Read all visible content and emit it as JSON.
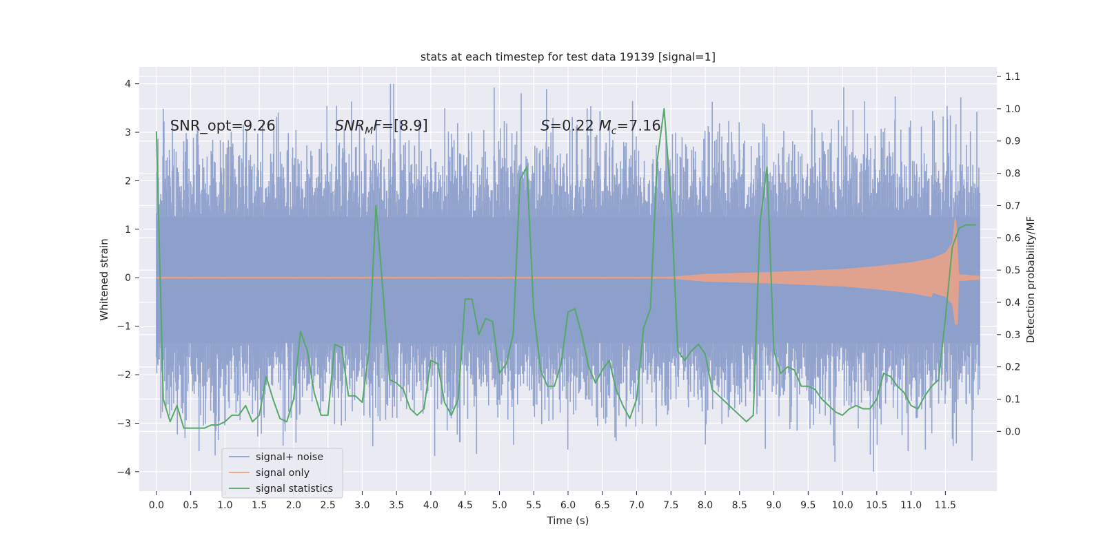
{
  "chart_data": {
    "type": "line",
    "title": "stats at each timestep for test data 19139 [signal=1]",
    "xlabel": "Time (s)",
    "ylabel": "Whitened strain",
    "y2label": "Detection probability/MF",
    "xlim": [
      -0.25,
      12.25
    ],
    "ylim": [
      -4.4,
      4.35
    ],
    "y2lim": [
      -0.185,
      1.13
    ],
    "grid": true,
    "legend_position": "lower-left",
    "x_ticks": [
      0.0,
      0.5,
      1.0,
      1.5,
      2.0,
      2.5,
      3.0,
      3.5,
      4.0,
      4.5,
      5.0,
      5.5,
      6.0,
      6.5,
      7.0,
      7.5,
      8.0,
      8.5,
      9.0,
      9.5,
      10.0,
      10.5,
      11.0,
      11.5
    ],
    "x_tick_labels": [
      "0.0",
      "0.5",
      "1.0",
      "1.5",
      "2.0",
      "2.5",
      "3.0",
      "3.5",
      "4.0",
      "4.5",
      "5.0",
      "5.5",
      "6.0",
      "6.5",
      "7.0",
      "7.5",
      "8.0",
      "8.5",
      "9.0",
      "9.5",
      "10.0",
      "10.5",
      "11.0",
      "11.5"
    ],
    "y_ticks": [
      -4,
      -3,
      -2,
      -1,
      0,
      1,
      2,
      3,
      4
    ],
    "y_tick_labels": [
      "−4",
      "−3",
      "−2",
      "−1",
      "0",
      "1",
      "2",
      "3",
      "4"
    ],
    "y2_ticks": [
      0.0,
      0.1,
      0.2,
      0.3,
      0.4,
      0.5,
      0.6,
      0.7,
      0.8,
      0.9,
      1.0,
      1.1
    ],
    "y2_tick_labels": [
      "0.0",
      "0.1",
      "0.2",
      "0.3",
      "0.4",
      "0.5",
      "0.6",
      "0.7",
      "0.8",
      "0.9",
      "1.0",
      "1.1"
    ],
    "annotations": [
      {
        "text": "SNR_opt=9.26",
        "x": 0.2,
        "y": 3.15
      },
      {
        "text": "SNR_MF=[8.9]",
        "x": 2.6,
        "y": 3.15
      },
      {
        "text": "S=0.22   M_c=7.16",
        "x": 5.6,
        "y": 3.15
      }
    ],
    "series": [
      {
        "name": "signal+ noise",
        "axis": "left",
        "color": "#8da0cb",
        "kind": "noise",
        "x_range": [
          0.0,
          12.0
        ],
        "samples": 2048,
        "amplitude_typical": 1.0,
        "amplitude_max": 4.0
      },
      {
        "name": "signal only",
        "axis": "left",
        "color": "#e9a287",
        "kind": "chirp",
        "x_range": [
          0.0,
          12.0
        ],
        "merger_time": 11.65,
        "peak_upper": 1.4,
        "peak_lower": -0.95,
        "envelope": [
          [
            7.5,
            0.0
          ],
          [
            8.0,
            0.06
          ],
          [
            9.0,
            0.1
          ],
          [
            10.0,
            0.16
          ],
          [
            10.5,
            0.22
          ],
          [
            11.0,
            0.3
          ],
          [
            11.3,
            0.38
          ],
          [
            11.5,
            0.5
          ],
          [
            11.6,
            0.7
          ],
          [
            11.65,
            1.4
          ],
          [
            11.7,
            0.05
          ],
          [
            12.0,
            0.02
          ]
        ]
      },
      {
        "name": "signal statistics",
        "axis": "right",
        "color": "#55a868",
        "kind": "line",
        "x": [
          0.0,
          0.1,
          0.2,
          0.3,
          0.4,
          0.5,
          0.6,
          0.7,
          0.8,
          0.9,
          1.0,
          1.1,
          1.2,
          1.3,
          1.4,
          1.5,
          1.6,
          1.7,
          1.8,
          1.9,
          2.0,
          2.1,
          2.2,
          2.3,
          2.4,
          2.5,
          2.6,
          2.7,
          2.8,
          2.9,
          3.0,
          3.1,
          3.2,
          3.3,
          3.4,
          3.5,
          3.6,
          3.7,
          3.8,
          3.9,
          4.0,
          4.1,
          4.2,
          4.3,
          4.4,
          4.5,
          4.6,
          4.7,
          4.8,
          4.9,
          5.0,
          5.1,
          5.2,
          5.3,
          5.4,
          5.5,
          5.6,
          5.7,
          5.8,
          5.9,
          6.0,
          6.1,
          6.2,
          6.3,
          6.4,
          6.5,
          6.6,
          6.7,
          6.8,
          6.9,
          7.0,
          7.1,
          7.2,
          7.3,
          7.4,
          7.5,
          7.6,
          7.7,
          7.8,
          7.9,
          8.0,
          8.1,
          8.2,
          8.3,
          8.4,
          8.5,
          8.6,
          8.7,
          8.8,
          8.9,
          9.0,
          9.1,
          9.2,
          9.3,
          9.4,
          9.5,
          9.6,
          9.7,
          9.8,
          9.9,
          10.0,
          10.1,
          10.2,
          10.3,
          10.4,
          10.5,
          10.6,
          10.7,
          10.8,
          10.9,
          11.0,
          11.1,
          11.2,
          11.3,
          11.4,
          11.5,
          11.6,
          11.7,
          11.8,
          11.9,
          11.95
        ],
        "values": [
          0.93,
          0.1,
          0.03,
          0.08,
          0.01,
          0.01,
          0.01,
          0.01,
          0.02,
          0.02,
          0.03,
          0.05,
          0.05,
          0.08,
          0.03,
          0.05,
          0.17,
          0.1,
          0.04,
          0.03,
          0.1,
          0.31,
          0.25,
          0.12,
          0.05,
          0.05,
          0.27,
          0.26,
          0.11,
          0.11,
          0.09,
          0.25,
          0.7,
          0.44,
          0.16,
          0.15,
          0.13,
          0.07,
          0.05,
          0.07,
          0.22,
          0.21,
          0.09,
          0.05,
          0.1,
          0.41,
          0.41,
          0.3,
          0.35,
          0.34,
          0.18,
          0.21,
          0.3,
          0.78,
          0.82,
          0.37,
          0.19,
          0.14,
          0.14,
          0.21,
          0.37,
          0.38,
          0.3,
          0.2,
          0.15,
          0.19,
          0.22,
          0.13,
          0.08,
          0.04,
          0.1,
          0.32,
          0.38,
          0.84,
          1.0,
          0.72,
          0.25,
          0.22,
          0.25,
          0.27,
          0.24,
          0.13,
          0.11,
          0.09,
          0.07,
          0.05,
          0.03,
          0.05,
          0.65,
          0.82,
          0.25,
          0.18,
          0.2,
          0.19,
          0.14,
          0.14,
          0.13,
          0.1,
          0.08,
          0.06,
          0.05,
          0.07,
          0.08,
          0.07,
          0.07,
          0.1,
          0.18,
          0.17,
          0.14,
          0.12,
          0.08,
          0.07,
          0.11,
          0.14,
          0.16,
          0.35,
          0.57,
          0.63,
          0.64,
          0.64,
          0.64
        ]
      }
    ]
  }
}
